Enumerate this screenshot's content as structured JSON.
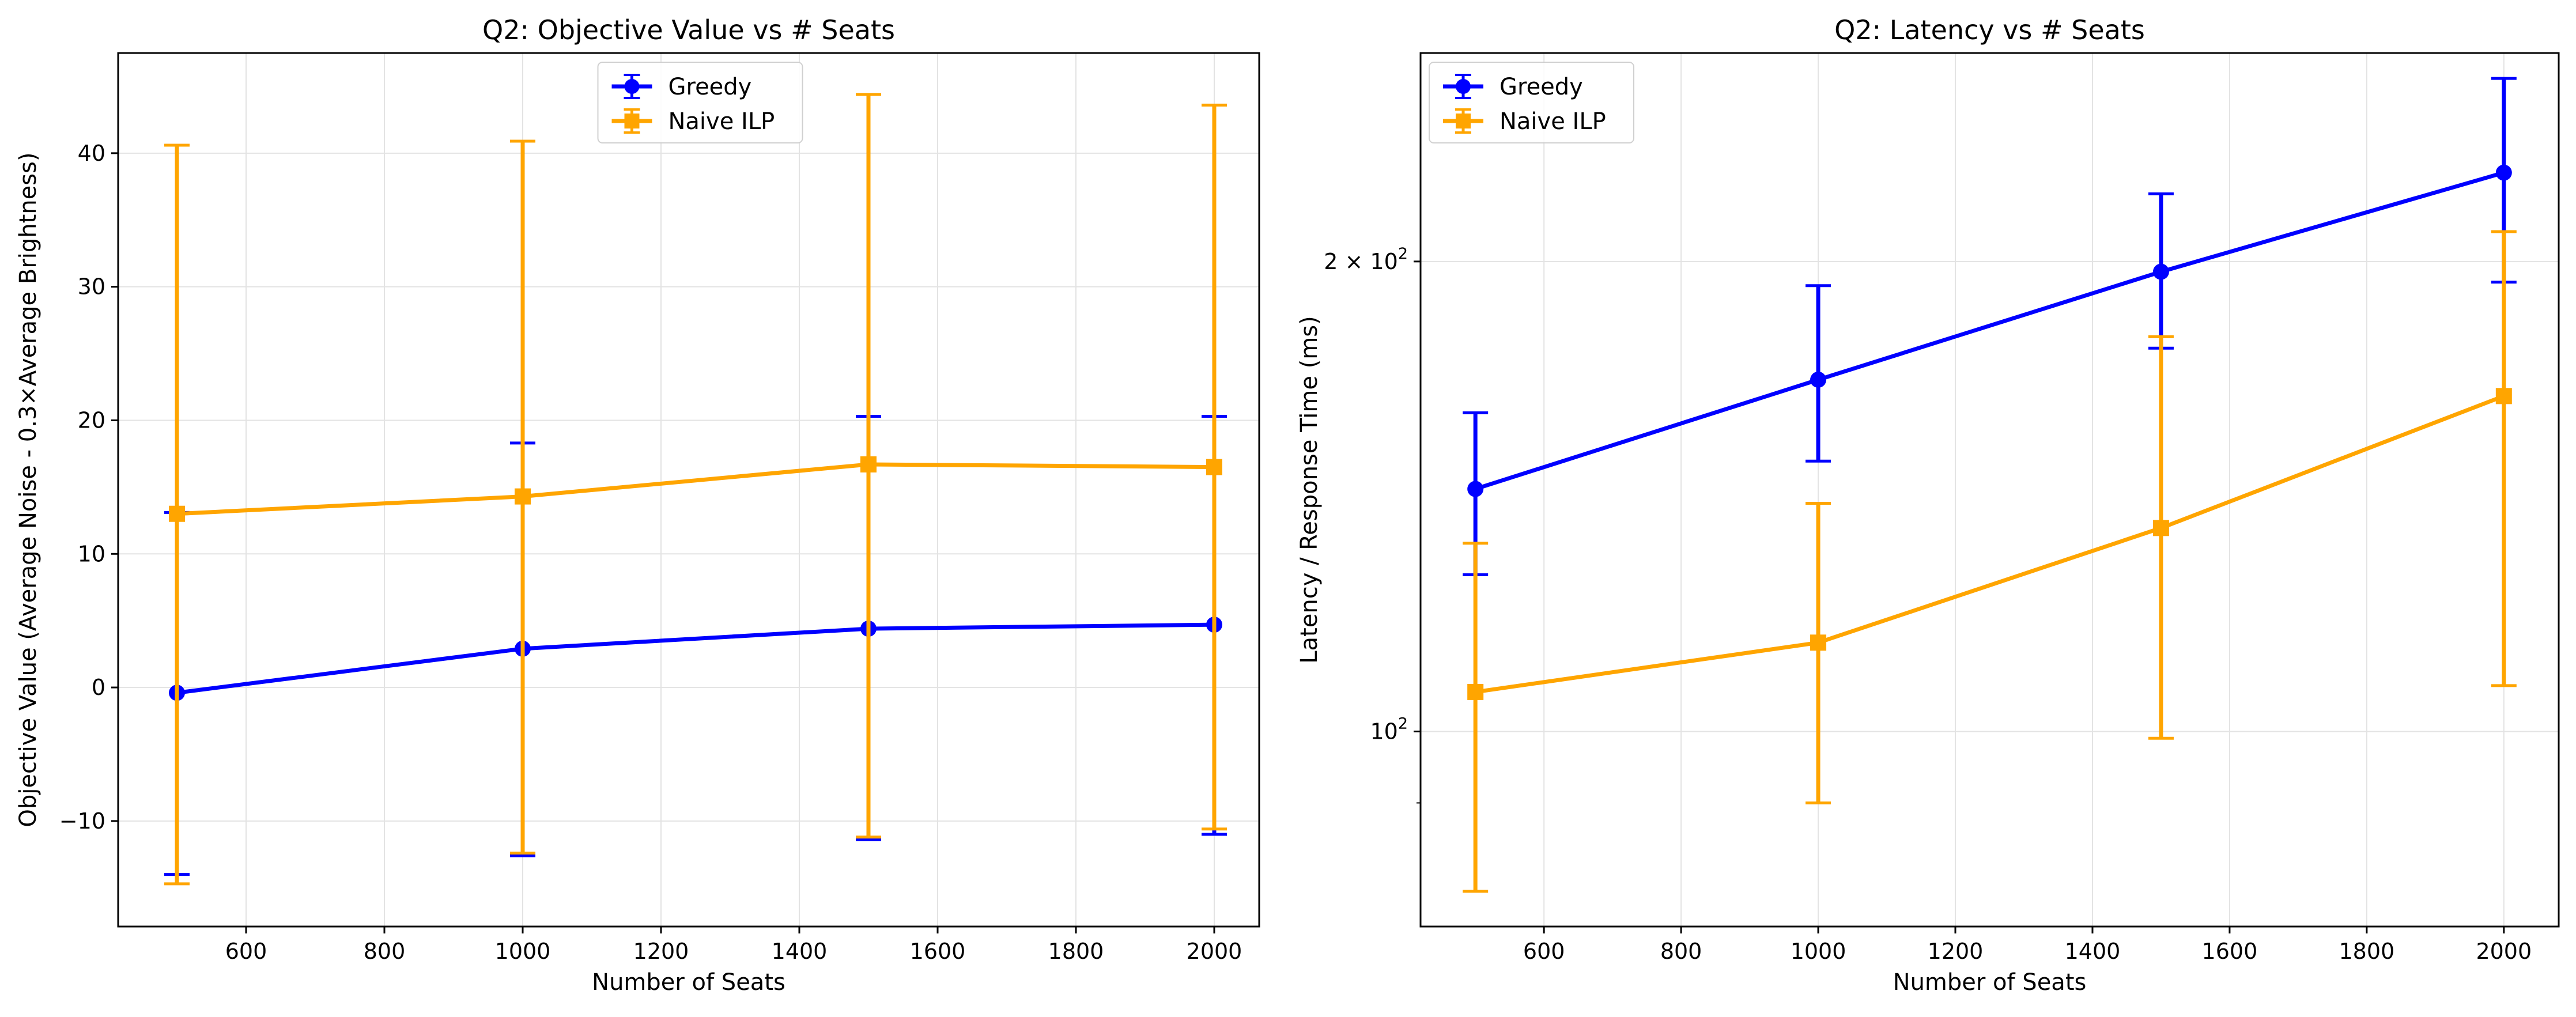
{
  "chart_data": [
    {
      "type": "line",
      "title": "Q2: Objective Value vs # Seats",
      "xlabel": "Number of Seats",
      "ylabel": "Objective Value (Average Noise - 0.3×Average Brightness)",
      "x": [
        500,
        1000,
        1500,
        2000
      ],
      "xlim": [
        415,
        2065
      ],
      "ylim": [
        -17.9,
        47.5
      ],
      "yscale": "linear",
      "xticks": [
        600,
        800,
        1000,
        1200,
        1400,
        1600,
        1800,
        2000
      ],
      "yticks": [
        -10,
        0,
        10,
        20,
        30,
        40
      ],
      "xtick_labels": [
        "600",
        "800",
        "1000",
        "1200",
        "1400",
        "1600",
        "1800",
        "2000"
      ],
      "ytick_labels": [
        "−10",
        "0",
        "10",
        "20",
        "30",
        "40"
      ],
      "grid": true,
      "legend": "upper center",
      "series": [
        {
          "name": "Greedy",
          "color": "#0000ff",
          "marker": "circle",
          "values": [
            -0.4,
            2.9,
            4.4,
            4.7
          ],
          "err_low": [
            -14.0,
            -12.6,
            -11.4,
            -11.0
          ],
          "err_high": [
            13.1,
            18.3,
            20.3,
            20.3
          ]
        },
        {
          "name": "Naive ILP",
          "color": "#ffa500",
          "marker": "square",
          "values": [
            13.0,
            14.3,
            16.7,
            16.5
          ],
          "err_low": [
            -14.7,
            -12.4,
            -11.2,
            -10.6
          ],
          "err_high": [
            40.6,
            40.9,
            44.4,
            43.6
          ]
        }
      ]
    },
    {
      "type": "line",
      "title": "Q2: Latency vs # Seats",
      "xlabel": "Number of Seats",
      "ylabel": "Latency / Response Time (ms)",
      "x": [
        500,
        1000,
        1500,
        2000
      ],
      "xlim": [
        420,
        2080
      ],
      "ylim": [
        75,
        272
      ],
      "yscale": "log",
      "xticks": [
        600,
        800,
        1000,
        1200,
        1400,
        1600,
        1800,
        2000
      ],
      "yticks_major": [
        100,
        200
      ],
      "yticks_minor": [
        90,
        300
      ],
      "xtick_labels": [
        "600",
        "800",
        "1000",
        "1200",
        "1400",
        "1600",
        "1800",
        "2000"
      ],
      "ytick_labels": [
        "10",
        "2 × 10"
      ],
      "ytick_exponent": "2",
      "grid": true,
      "legend": "upper left",
      "series": [
        {
          "name": "Greedy",
          "color": "#0000ff",
          "marker": "circle",
          "values": [
            143,
            168,
            197,
            228
          ],
          "err_low": [
            126,
            149,
            176,
            194
          ],
          "err_high": [
            160,
            193,
            221,
            262
          ]
        },
        {
          "name": "Naive ILP",
          "color": "#ffa500",
          "marker": "square",
          "values": [
            106,
            114,
            135,
            164
          ],
          "err_low": [
            79,
            90,
            99,
            107
          ],
          "err_high": [
            132,
            140,
            179,
            209
          ]
        }
      ]
    }
  ]
}
